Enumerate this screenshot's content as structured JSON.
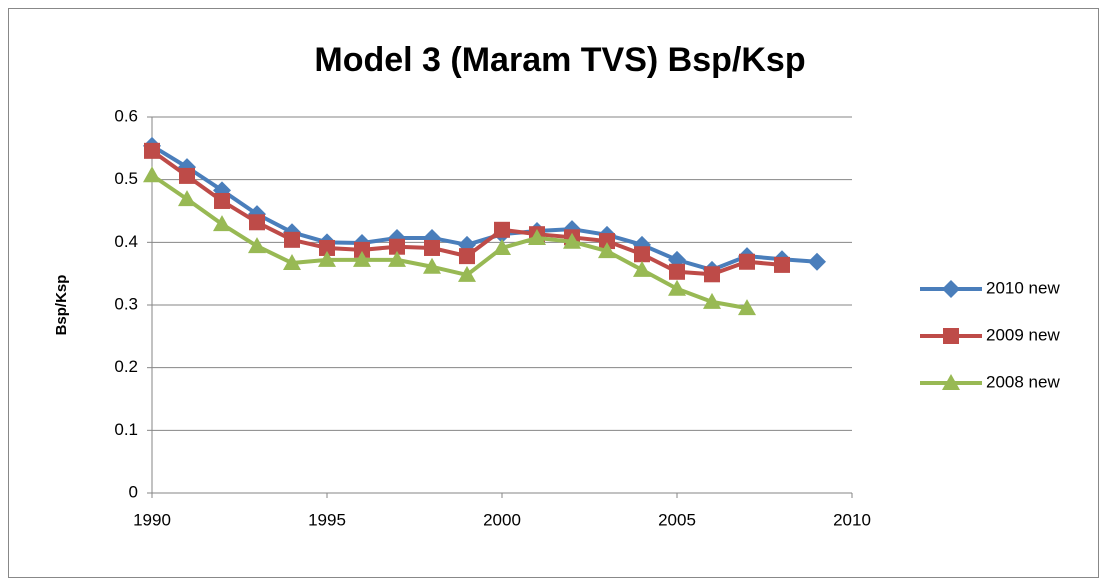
{
  "chart_data": {
    "type": "line",
    "title": "Model 3 (Maram TVS) Bsp/Ksp",
    "y_label": "Bsp/Ksp",
    "x": [
      1990,
      1991,
      1992,
      1993,
      1994,
      1995,
      1996,
      1997,
      1998,
      1999,
      2000,
      2001,
      2002,
      2003,
      2004,
      2005,
      2006,
      2007,
      2008,
      2009
    ],
    "xlim": [
      1990,
      2010
    ],
    "xticks": [
      1990,
      1995,
      2000,
      2005,
      2010
    ],
    "ylim": [
      0,
      0.6
    ],
    "yticks": [
      0,
      0.1,
      0.2,
      0.3,
      0.4,
      0.5,
      0.6
    ],
    "grid": true,
    "legend": "right",
    "series": [
      {
        "name": "2010 new",
        "color": "#4a7ebb",
        "marker": "diamond",
        "values": [
          0.554,
          0.52,
          0.483,
          0.445,
          0.416,
          0.4,
          0.399,
          0.407,
          0.407,
          0.396,
          0.413,
          0.418,
          0.421,
          0.412,
          0.396,
          0.372,
          0.356,
          0.378,
          0.373,
          0.369
        ]
      },
      {
        "name": "2009 new",
        "color": "#be4b48",
        "marker": "square",
        "values": [
          0.546,
          0.506,
          0.466,
          0.432,
          0.404,
          0.391,
          0.388,
          0.393,
          0.391,
          0.378,
          0.42,
          0.413,
          0.408,
          0.402,
          0.381,
          0.353,
          0.349,
          0.369,
          0.364,
          null
        ]
      },
      {
        "name": "2008 new",
        "color": "#98b954",
        "marker": "triangle",
        "values": [
          0.507,
          0.469,
          0.429,
          0.394,
          0.367,
          0.372,
          0.372,
          0.372,
          0.361,
          0.348,
          0.391,
          0.407,
          0.401,
          0.386,
          0.356,
          0.326,
          0.305,
          0.295,
          null,
          null
        ]
      }
    ]
  }
}
